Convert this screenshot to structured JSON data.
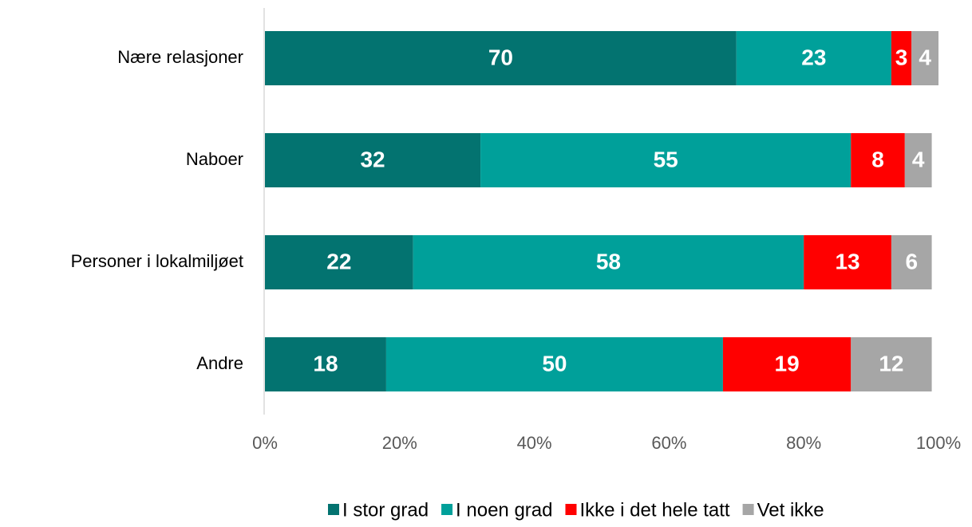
{
  "chart_data": {
    "type": "stacked_barh",
    "categories": [
      "Nære relasjoner",
      "Naboer",
      "Personer i lokalmiljøet",
      "Andre"
    ],
    "series": [
      {
        "name": "I stor grad",
        "color": "#037370",
        "values": [
          70,
          32,
          22,
          18
        ]
      },
      {
        "name": "I noen grad",
        "color": "#00a09a",
        "values": [
          23,
          55,
          58,
          50
        ]
      },
      {
        "name": "Ikke i det hele tatt",
        "color": "#ff0000",
        "values": [
          3,
          8,
          13,
          19
        ]
      },
      {
        "name": "Vet ikke",
        "color": "#a6a6a6",
        "values": [
          4,
          4,
          6,
          12
        ]
      }
    ],
    "xlim": [
      0,
      100
    ],
    "xticks": [
      {
        "value": 0,
        "label": "0%"
      },
      {
        "value": 20,
        "label": "20%"
      },
      {
        "value": 40,
        "label": "40%"
      },
      {
        "value": 60,
        "label": "60%"
      },
      {
        "value": 80,
        "label": "80%"
      },
      {
        "value": 100,
        "label": "100%"
      }
    ],
    "legend": "bottom"
  }
}
